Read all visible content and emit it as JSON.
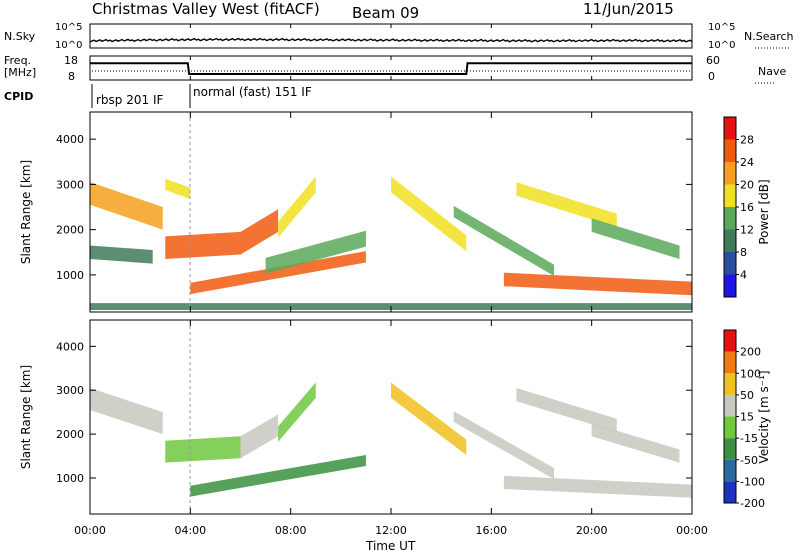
{
  "header": {
    "title": "Christmas Valley West (fitACF)",
    "beam": "Beam 09",
    "date": "11/Jun/2015"
  },
  "params": {
    "nsky_label": "N.Sky",
    "nsky_ticks": [
      "10^5",
      "10^0"
    ],
    "nsearch_label": "N.Search",
    "nsearch_ticks": [
      "10^5",
      "10^0"
    ],
    "freq_label": "Freq.",
    "freq_unit": "[MHz]",
    "freq_ticks": [
      "18",
      "8"
    ],
    "nave_label": "Nave",
    "nave_ticks": [
      "60",
      "0"
    ],
    "cpid_label": "CPID",
    "cpid_segments": [
      "rbsp 201 IF",
      "normal (fast) 151 IF"
    ]
  },
  "power_panel": {
    "ylabel": "Slant Range [km]",
    "yticks": [
      "4000",
      "3000",
      "2000",
      "1000"
    ],
    "colorbar_label": "Power [dB]",
    "colorbar_ticks": [
      "28",
      "24",
      "20",
      "16",
      "12",
      "8",
      "4"
    ],
    "colors": [
      "#1e14e6",
      "#2a4f9e",
      "#3f7a5a",
      "#5aa85a",
      "#f0e020",
      "#f5a020",
      "#f05a10",
      "#e81010"
    ]
  },
  "velocity_panel": {
    "ylabel": "Slant Range [km]",
    "yticks": [
      "4000",
      "3000",
      "2000",
      "1000"
    ],
    "colorbar_label": "Velocity [m s⁻¹]",
    "colorbar_ticks": [
      "200",
      "100",
      "50",
      "15",
      "-15",
      "-50",
      "-100",
      "-200"
    ],
    "colors": [
      "#2030c0",
      "#2a6aa0",
      "#3a9040",
      "#70c840",
      "#c8c8c0",
      "#f0c020",
      "#f07a10",
      "#e81010"
    ]
  },
  "xaxis": {
    "label": "Time UT",
    "ticks": [
      "00:00",
      "04:00",
      "08:00",
      "12:00",
      "16:00",
      "20:00",
      "00:00"
    ]
  },
  "chart_data": [
    {
      "type": "line",
      "title": "N.Sky / N.Search",
      "x_unit": "hours UT",
      "x": [
        0,
        3,
        6,
        9,
        12,
        15,
        18,
        21,
        24
      ],
      "series": [
        {
          "name": "N.Sky",
          "values": [
            1.2,
            1.5,
            1.6,
            1.5,
            1.4,
            1.3,
            1.2,
            1.3,
            1.2
          ]
        }
      ]
    },
    {
      "type": "line",
      "title": "Freq. [MHz]",
      "x_unit": "hours UT",
      "ylim": [
        8,
        18
      ],
      "x": [
        0,
        3.9,
        3.95,
        15,
        15.05,
        24
      ],
      "series": [
        {
          "name": "Freq.",
          "values": [
            15,
            15,
            10.5,
            10.5,
            15,
            15
          ]
        }
      ]
    },
    {
      "type": "heatmap",
      "title": "Power [dB]",
      "xlabel": "Time UT",
      "ylabel": "Slant Range [km]",
      "xlim": [
        0,
        24
      ],
      "ylim": [
        180,
        4600
      ],
      "colorbar": [
        4,
        8,
        12,
        16,
        20,
        24,
        28
      ],
      "bands": [
        {
          "t0": 0,
          "t1": 2.9,
          "r0": 2800,
          "r1": 2250,
          "thickness": 500,
          "value": 20
        },
        {
          "t0": 0,
          "t1": 2.5,
          "r0": 1500,
          "r1": 1400,
          "thickness": 300,
          "value": 10
        },
        {
          "t0": 3.0,
          "t1": 4.0,
          "r0": 3000,
          "r1": 2800,
          "thickness": 250,
          "value": 18
        },
        {
          "t0": 3.0,
          "t1": 6.0,
          "r0": 1600,
          "r1": 1700,
          "thickness": 500,
          "value": 26
        },
        {
          "t0": 6.0,
          "t1": 7.5,
          "r0": 1700,
          "r1": 2200,
          "thickness": 500,
          "value": 27
        },
        {
          "t0": 7.5,
          "t1": 9.0,
          "r0": 2000,
          "r1": 3000,
          "thickness": 350,
          "value": 16
        },
        {
          "t0": 4.0,
          "t1": 11.0,
          "r0": 700,
          "r1": 1400,
          "thickness": 250,
          "value": 24
        },
        {
          "t0": 7.0,
          "t1": 11.0,
          "r0": 1200,
          "r1": 1800,
          "thickness": 350,
          "value": 13
        },
        {
          "t0": 12.0,
          "t1": 15.0,
          "r0": 3000,
          "r1": 1700,
          "thickness": 350,
          "value": 16
        },
        {
          "t0": 14.5,
          "t1": 18.5,
          "r0": 2400,
          "r1": 1100,
          "thickness": 250,
          "value": 12
        },
        {
          "t0": 16.5,
          "t1": 24,
          "r0": 900,
          "r1": 700,
          "thickness": 300,
          "value": 27
        },
        {
          "t0": 17.0,
          "t1": 21.0,
          "r0": 2900,
          "r1": 2200,
          "thickness": 300,
          "value": 18
        },
        {
          "t0": 20.0,
          "t1": 23.5,
          "r0": 2100,
          "r1": 1500,
          "thickness": 300,
          "value": 12
        },
        {
          "t0": 0,
          "t1": 24,
          "r0": 300,
          "r1": 300,
          "thickness": 150,
          "value": 8
        }
      ]
    },
    {
      "type": "heatmap",
      "title": "Velocity [m s⁻¹]",
      "xlabel": "Time UT",
      "ylabel": "Slant Range [km]",
      "xlim": [
        0,
        24
      ],
      "ylim": [
        180,
        4600
      ],
      "colorbar": [
        -200,
        -100,
        -50,
        -15,
        15,
        50,
        100,
        200
      ],
      "bands": [
        {
          "t0": 0,
          "t1": 2.9,
          "r0": 2800,
          "r1": 2250,
          "thickness": 500,
          "value": 0
        },
        {
          "t0": 3.0,
          "t1": 6.0,
          "r0": 1600,
          "r1": 1700,
          "thickness": 500,
          "value": -40
        },
        {
          "t0": 6.0,
          "t1": 7.5,
          "r0": 1700,
          "r1": 2200,
          "thickness": 500,
          "value": 0
        },
        {
          "t0": 7.5,
          "t1": 9.0,
          "r0": 2000,
          "r1": 3000,
          "thickness": 350,
          "value": -40
        },
        {
          "t0": 4.0,
          "t1": 11.0,
          "r0": 700,
          "r1": 1400,
          "thickness": 250,
          "value": -80
        },
        {
          "t0": 12.0,
          "t1": 15.0,
          "r0": 3000,
          "r1": 1700,
          "thickness": 350,
          "value": 30
        },
        {
          "t0": 14.5,
          "t1": 18.5,
          "r0": 2400,
          "r1": 1100,
          "thickness": 250,
          "value": 0
        },
        {
          "t0": 16.5,
          "t1": 24,
          "r0": 900,
          "r1": 700,
          "thickness": 300,
          "value": 0
        },
        {
          "t0": 17.0,
          "t1": 21.0,
          "r0": 2900,
          "r1": 2200,
          "thickness": 300,
          "value": 0
        },
        {
          "t0": 20.0,
          "t1": 23.5,
          "r0": 2100,
          "r1": 1500,
          "thickness": 300,
          "value": 0
        }
      ]
    }
  ]
}
